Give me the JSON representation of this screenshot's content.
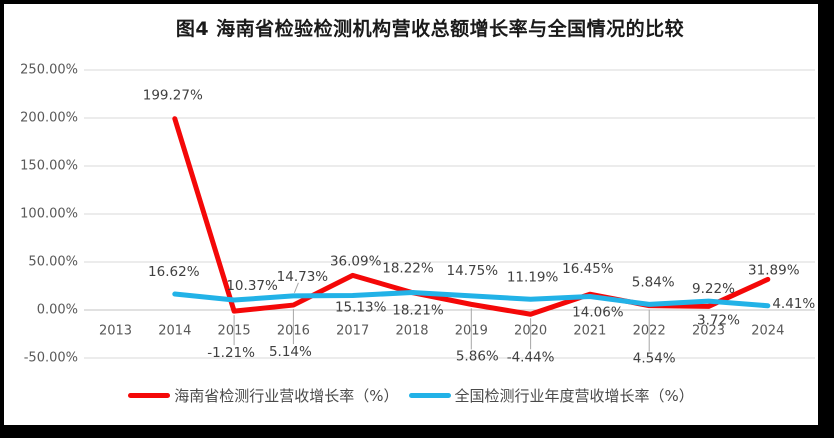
{
  "frame": {
    "outer_background": "#000000",
    "inner_background": "#ffffff"
  },
  "chart_data": {
    "type": "line",
    "title": "图4 海南省检验检测机构营收总额增长率与全国情况的比较",
    "categories": [
      "2013",
      "2014",
      "2015",
      "2016",
      "2017",
      "2018",
      "2019",
      "2020",
      "2021",
      "2022",
      "2023",
      "2024"
    ],
    "series": [
      {
        "name": "海南省检测行业营收增长率（%）",
        "color": "#f40808",
        "values": [
          null,
          199.27,
          -1.21,
          5.14,
          36.09,
          18.22,
          5.86,
          -4.44,
          16.45,
          4.54,
          3.72,
          31.89
        ]
      },
      {
        "name": "全国检测行业年度营收增长率（%）",
        "color": "#22b2e7",
        "values": [
          null,
          16.62,
          10.37,
          14.73,
          15.13,
          18.21,
          14.75,
          11.19,
          14.06,
          5.84,
          9.22,
          4.41
        ]
      }
    ],
    "ylim": [
      -50,
      250
    ],
    "yticks": [
      250,
      200,
      150,
      100,
      50,
      0,
      -50
    ],
    "ytick_labels": [
      "250.00%",
      "200.00%",
      "150.00%",
      "100.00%",
      "50.00%",
      "0.00%",
      "-50.00%"
    ],
    "grid": true,
    "legend_position": "bottom",
    "label_format": "0.00%",
    "colors": {
      "gridline": "#d9d9d9",
      "axis_line": "#c3c3c3",
      "leader_line": "#a6a6a6",
      "tick_text": "#595959",
      "label_text": "#404040",
      "title_text": "#1a1a1a",
      "legend_text": "#4a4a4a"
    },
    "label_layout": {
      "offsets": [
        [
          null,
          [
            -2,
            -23
          ],
          [
            -3,
            42
          ],
          [
            -3,
            47
          ],
          [
            3,
            -14
          ],
          [
            -4,
            -24
          ],
          [
            6,
            52
          ],
          [
            0,
            43
          ],
          [
            -2,
            -25
          ],
          [
            5,
            53
          ],
          [
            10,
            14
          ],
          [
            6,
            -9
          ]
        ],
        [
          null,
          [
            -1,
            -22
          ],
          [
            18,
            -14
          ],
          [
            9,
            -19
          ],
          [
            8,
            12
          ],
          [
            6,
            18
          ],
          [
            1,
            -25
          ],
          [
            2,
            -22
          ],
          [
            8,
            16
          ],
          [
            4,
            -22
          ],
          [
            5,
            -12
          ],
          [
            26,
            -2
          ]
        ]
      ],
      "leaders": [
        [
          [
            2,
            0,
            4,
            0,
            34
          ],
          [
            3,
            0,
            4,
            0,
            39
          ],
          [
            6,
            0,
            4,
            0,
            45
          ],
          [
            7,
            0,
            4,
            0,
            35
          ],
          [
            9,
            0,
            4,
            0,
            46
          ]
        ],
        [
          [
            3,
            5,
            -13,
            1,
            -3
          ]
        ]
      ]
    }
  }
}
